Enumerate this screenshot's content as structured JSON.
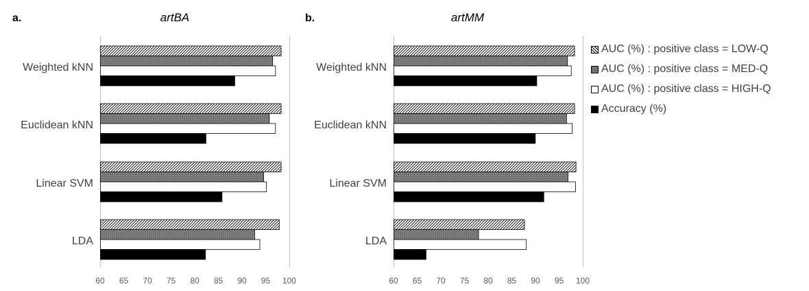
{
  "panels": [
    {
      "letter": "a.",
      "title": "artBA"
    },
    {
      "letter": "b.",
      "title": "artMM"
    }
  ],
  "legend": [
    {
      "label": "AUC (%) : positive class = LOW-Q",
      "fill": "hatch"
    },
    {
      "label": "AUC (%) : positive class = MED-Q",
      "fill": "gray"
    },
    {
      "label": "AUC (%) : positive class = HIGH-Q",
      "fill": "white"
    },
    {
      "label": "Accuracy (%)",
      "fill": "black"
    }
  ],
  "colors": {
    "hatch_line": "#000000",
    "med": "#707070",
    "high": "#ffffff",
    "accuracy": "#000000",
    "axis": "#bfbfbf",
    "text": "#404040"
  },
  "chart_data": [
    {
      "type": "bar",
      "orientation": "horizontal",
      "panel": "a.",
      "title": "artBA",
      "categories": [
        "Weighted kNN",
        "Euclidean kNN",
        "Linear SVM",
        "LDA"
      ],
      "xlim": [
        60,
        100
      ],
      "xticks": [
        60,
        65,
        70,
        75,
        80,
        85,
        90,
        95,
        100
      ],
      "series": [
        {
          "name": "AUC (%) : positive class = LOW-Q",
          "values": [
            98.2,
            98.2,
            98.2,
            97.8
          ]
        },
        {
          "name": "AUC (%) : positive class = MED-Q",
          "values": [
            96.4,
            95.7,
            94.5,
            92.6
          ]
        },
        {
          "name": "AUC (%) : positive class = HIGH-Q",
          "values": [
            97.0,
            97.0,
            95.1,
            93.7
          ]
        },
        {
          "name": "Accuracy (%)",
          "values": [
            88.4,
            82.3,
            85.7,
            82.2
          ]
        }
      ]
    },
    {
      "type": "bar",
      "orientation": "horizontal",
      "panel": "b.",
      "title": "artMM",
      "categories": [
        "Weighted kNN",
        "Euclidean kNN",
        "Linear SVM",
        "LDA"
      ],
      "xlim": [
        60,
        100
      ],
      "xticks": [
        60,
        65,
        70,
        75,
        80,
        85,
        90,
        95,
        100
      ],
      "series": [
        {
          "name": "AUC (%) : positive class = LOW-Q",
          "values": [
            98.2,
            98.2,
            98.5,
            87.6
          ]
        },
        {
          "name": "AUC (%) : positive class = MED-Q",
          "values": [
            96.7,
            96.5,
            96.8,
            77.9
          ]
        },
        {
          "name": "AUC (%) : positive class = HIGH-Q",
          "values": [
            97.5,
            97.7,
            98.4,
            88.0
          ]
        },
        {
          "name": "Accuracy (%)",
          "values": [
            90.2,
            89.9,
            91.7,
            66.8
          ]
        }
      ]
    }
  ]
}
